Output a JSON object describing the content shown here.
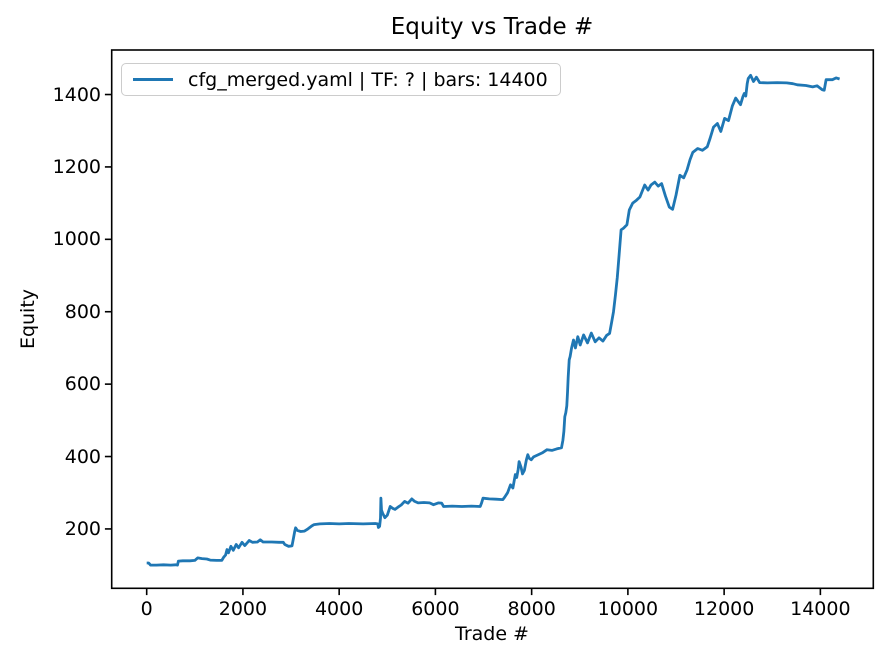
{
  "figure": {
    "title": "Equity vs Trade #",
    "xlabel": "Trade #",
    "ylabel": "Equity",
    "legend": {
      "label": "cfg_merged.yaml | TF: ? | bars: 14400",
      "line_color": "#1f77b4",
      "position": "upper left"
    }
  },
  "chart_data": {
    "type": "line",
    "title": "Equity vs Trade #",
    "xlabel": "Trade #",
    "ylabel": "Equity",
    "xlim": [
      -727,
      15100
    ],
    "ylim": [
      36,
      1523
    ],
    "xticks": [
      0,
      2000,
      4000,
      6000,
      8000,
      10000,
      12000,
      14000
    ],
    "yticks": [
      200,
      400,
      600,
      800,
      1000,
      1200,
      1400
    ],
    "grid": false,
    "legend_position": "upper left",
    "axes_color": "#000000",
    "series": [
      {
        "name": "cfg_merged.yaml | TF: ? | bars: 14400",
        "color": "#1f77b4",
        "line_width": 2.8,
        "points": [
          [
            0,
            106
          ],
          [
            40,
            106
          ],
          [
            60,
            103
          ],
          [
            80,
            100
          ],
          [
            200,
            100
          ],
          [
            350,
            101
          ],
          [
            500,
            100
          ],
          [
            600,
            101
          ],
          [
            640,
            100
          ],
          [
            660,
            111
          ],
          [
            750,
            112
          ],
          [
            900,
            112
          ],
          [
            1000,
            113
          ],
          [
            1060,
            120
          ],
          [
            1150,
            118
          ],
          [
            1250,
            117
          ],
          [
            1320,
            114
          ],
          [
            1450,
            113
          ],
          [
            1560,
            113
          ],
          [
            1600,
            122
          ],
          [
            1640,
            128
          ],
          [
            1670,
            143
          ],
          [
            1700,
            134
          ],
          [
            1750,
            152
          ],
          [
            1800,
            141
          ],
          [
            1860,
            157
          ],
          [
            1910,
            148
          ],
          [
            1980,
            163
          ],
          [
            2040,
            154
          ],
          [
            2130,
            168
          ],
          [
            2200,
            163
          ],
          [
            2300,
            164
          ],
          [
            2360,
            170
          ],
          [
            2420,
            164
          ],
          [
            2600,
            164
          ],
          [
            2750,
            163
          ],
          [
            2840,
            163
          ],
          [
            2870,
            157
          ],
          [
            2950,
            152
          ],
          [
            3020,
            153
          ],
          [
            3050,
            175
          ],
          [
            3075,
            193
          ],
          [
            3095,
            203
          ],
          [
            3130,
            196
          ],
          [
            3200,
            193
          ],
          [
            3280,
            194
          ],
          [
            3350,
            200
          ],
          [
            3430,
            208
          ],
          [
            3480,
            212
          ],
          [
            3600,
            214
          ],
          [
            3800,
            215
          ],
          [
            4000,
            214
          ],
          [
            4200,
            215
          ],
          [
            4500,
            214
          ],
          [
            4750,
            215
          ],
          [
            4800,
            214
          ],
          [
            4815,
            204
          ],
          [
            4840,
            207
          ],
          [
            4860,
            230
          ],
          [
            4868,
            285
          ],
          [
            4880,
            252
          ],
          [
            4905,
            243
          ],
          [
            4950,
            231
          ],
          [
            5000,
            238
          ],
          [
            5060,
            262
          ],
          [
            5110,
            257
          ],
          [
            5160,
            254
          ],
          [
            5220,
            260
          ],
          [
            5290,
            266
          ],
          [
            5360,
            276
          ],
          [
            5430,
            271
          ],
          [
            5510,
            283
          ],
          [
            5570,
            276
          ],
          [
            5640,
            272
          ],
          [
            5760,
            273
          ],
          [
            5880,
            272
          ],
          [
            5960,
            267
          ],
          [
            6060,
            272
          ],
          [
            6130,
            271
          ],
          [
            6170,
            262
          ],
          [
            6350,
            263
          ],
          [
            6550,
            262
          ],
          [
            6750,
            263
          ],
          [
            6930,
            262
          ],
          [
            6960,
            272
          ],
          [
            6990,
            285
          ],
          [
            7120,
            283
          ],
          [
            7260,
            282
          ],
          [
            7400,
            281
          ],
          [
            7440,
            288
          ],
          [
            7500,
            300
          ],
          [
            7560,
            322
          ],
          [
            7610,
            313
          ],
          [
            7660,
            350
          ],
          [
            7690,
            342
          ],
          [
            7720,
            365
          ],
          [
            7740,
            386
          ],
          [
            7780,
            370
          ],
          [
            7810,
            352
          ],
          [
            7850,
            362
          ],
          [
            7890,
            391
          ],
          [
            7920,
            405
          ],
          [
            7950,
            395
          ],
          [
            7990,
            391
          ],
          [
            8040,
            399
          ],
          [
            8120,
            404
          ],
          [
            8220,
            410
          ],
          [
            8320,
            419
          ],
          [
            8420,
            417
          ],
          [
            8520,
            421
          ],
          [
            8620,
            424
          ],
          [
            8650,
            445
          ],
          [
            8670,
            470
          ],
          [
            8690,
            510
          ],
          [
            8710,
            521
          ],
          [
            8730,
            540
          ],
          [
            8745,
            576
          ],
          [
            8760,
            620
          ],
          [
            8780,
            667
          ],
          [
            8800,
            676
          ],
          [
            8830,
            700
          ],
          [
            8870,
            722
          ],
          [
            8910,
            700
          ],
          [
            8960,
            731
          ],
          [
            9010,
            708
          ],
          [
            9080,
            736
          ],
          [
            9160,
            714
          ],
          [
            9240,
            741
          ],
          [
            9320,
            717
          ],
          [
            9400,
            728
          ],
          [
            9480,
            719
          ],
          [
            9560,
            735
          ],
          [
            9620,
            740
          ],
          [
            9660,
            769
          ],
          [
            9700,
            800
          ],
          [
            9740,
            845
          ],
          [
            9780,
            895
          ],
          [
            9820,
            960
          ],
          [
            9860,
            1026
          ],
          [
            9910,
            1031
          ],
          [
            9980,
            1040
          ],
          [
            10030,
            1081
          ],
          [
            10100,
            1100
          ],
          [
            10180,
            1108
          ],
          [
            10250,
            1117
          ],
          [
            10350,
            1150
          ],
          [
            10420,
            1136
          ],
          [
            10480,
            1150
          ],
          [
            10560,
            1158
          ],
          [
            10630,
            1147
          ],
          [
            10700,
            1154
          ],
          [
            10780,
            1120
          ],
          [
            10860,
            1089
          ],
          [
            10930,
            1083
          ],
          [
            11000,
            1122
          ],
          [
            11080,
            1177
          ],
          [
            11160,
            1170
          ],
          [
            11230,
            1192
          ],
          [
            11290,
            1220
          ],
          [
            11350,
            1240
          ],
          [
            11450,
            1251
          ],
          [
            11550,
            1246
          ],
          [
            11650,
            1256
          ],
          [
            11710,
            1280
          ],
          [
            11780,
            1310
          ],
          [
            11860,
            1320
          ],
          [
            11930,
            1298
          ],
          [
            12010,
            1334
          ],
          [
            12090,
            1328
          ],
          [
            12170,
            1368
          ],
          [
            12240,
            1390
          ],
          [
            12290,
            1381
          ],
          [
            12340,
            1372
          ],
          [
            12390,
            1394
          ],
          [
            12420,
            1403
          ],
          [
            12450,
            1396
          ],
          [
            12480,
            1430
          ],
          [
            12500,
            1444
          ],
          [
            12550,
            1453
          ],
          [
            12610,
            1436
          ],
          [
            12670,
            1448
          ],
          [
            12740,
            1433
          ],
          [
            12900,
            1432
          ],
          [
            13100,
            1433
          ],
          [
            13300,
            1432
          ],
          [
            13430,
            1430
          ],
          [
            13520,
            1427
          ],
          [
            13700,
            1425
          ],
          [
            13840,
            1421
          ],
          [
            13930,
            1424
          ],
          [
            14040,
            1413
          ],
          [
            14080,
            1412
          ],
          [
            14120,
            1441
          ],
          [
            14250,
            1441
          ],
          [
            14330,
            1446
          ],
          [
            14400,
            1443
          ]
        ]
      }
    ]
  }
}
